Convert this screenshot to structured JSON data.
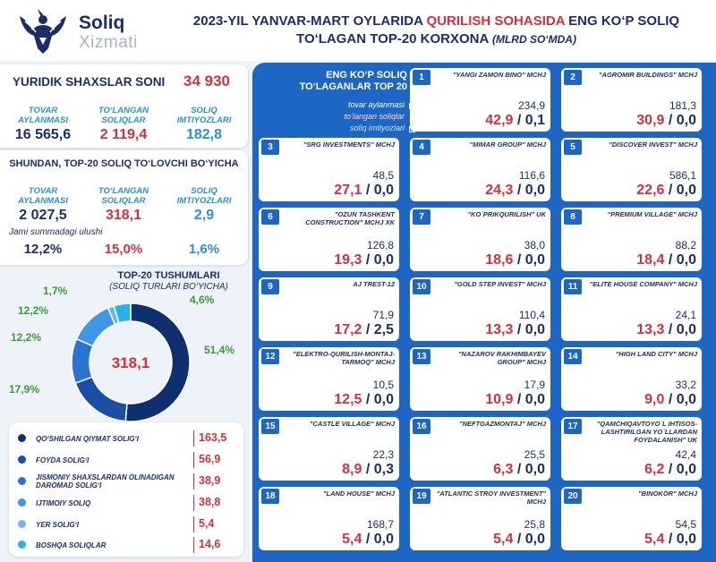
{
  "header": {
    "logo_title": "Soliq",
    "logo_sub": "Xizmati",
    "title_part1": "2023-YIL YANVAR-MART OYLARIDA ",
    "title_red": "QURILISH SOHASIDA",
    "title_part2": " ENG KO‘P SOLIQ",
    "title_line2": "TO‘LAGAN TOP-20 KORXONA",
    "title_unit": "(MLRD SO‘MDA)"
  },
  "entities": {
    "title": "YURIDIK SHAXSLAR SONI",
    "count": "34 930",
    "labels": [
      "TOVAR AYLANMASI",
      "TO‘LANGAN SOLIQLAR",
      "SOLIQ IMTIYOZLARI"
    ],
    "values": [
      "16 565,6",
      "2 119,4",
      "182,8"
    ]
  },
  "top20": {
    "title": "SHUNDAN, TOP-20 SOLIQ TO‘LOVCHI BO‘YICHA",
    "labels": [
      "TOVAR AYLANMASI",
      "TO‘LANGAN SOLIQLAR",
      "SOLIQ IMTIYOZLARI"
    ],
    "values": [
      "2 027,5",
      "318,1",
      "2,9"
    ],
    "share_label": "Jami summadagi ulushi",
    "shares": [
      "12,2%",
      "15,0%",
      "1,6%"
    ]
  },
  "donut": {
    "title": "TOP-20 TUSHUMLARI",
    "subtitle": "(SOLIQ TURLARI BO‘YICHA)",
    "center": "318,1",
    "pct_labels": [
      "51,4%",
      "17,9%",
      "12,2%",
      "12,2%",
      "1,7%",
      "4,6%"
    ]
  },
  "chart_data": {
    "type": "pie",
    "title": "TOP-20 TUSHUMLARI",
    "subtitle": "(SOLIQ TURLARI BO‘YICHA)",
    "total": 318.1,
    "categories": [
      "QO‘SHILGAN QIYMAT SOLIG‘I",
      "FOYDA SOLIG‘I",
      "JISMONIY SHAXSLARDAN OLINADIGAN DAROMAD SOLIG‘I",
      "IJTIMOIY SOLIQ",
      "YER SOLIG‘I",
      "BOSHQA SOLIQLAR"
    ],
    "values": [
      163.5,
      56.9,
      38.9,
      38.8,
      5.4,
      14.6
    ],
    "percents": [
      51.4,
      17.9,
      12.2,
      12.2,
      1.7,
      4.6
    ],
    "colors": [
      "#0f2f6e",
      "#1b4fa3",
      "#2a74cf",
      "#3d96e6",
      "#6cb9f2",
      "#2ab0ee"
    ]
  },
  "legend": [
    {
      "label": "QO‘SHILGAN QIYMAT SOLIG‘I",
      "value": "163,5"
    },
    {
      "label": "FOYDA SOLIG‘I",
      "value": "56,9"
    },
    {
      "label": "JISMONIY SHAXSLARDAN OLINADIGAN DAROMAD SOLIG‘I",
      "value": "38,9"
    },
    {
      "label": "IJTIMOIY SOLIQ",
      "value": "38,8"
    },
    {
      "label": "YER SOLIG‘I",
      "value": "5,4"
    },
    {
      "label": "BOSHQA SOLIQLAR",
      "value": "14,6"
    }
  ],
  "right": {
    "title": "ENG KO‘P SOLIQ TO‘LAGANLAR TOP 20",
    "legend": [
      "tovar aylanmasi",
      "to‘langan soliqlar",
      "soliq imtiyozlari"
    ],
    "legend_colors": [
      "#1b2e6b",
      "#d6303f",
      "#2a8fd9"
    ]
  },
  "companies": [
    {
      "num": "1",
      "name": "\"YANGI ZAMON BINO\" MCHJ",
      "turnover": "234,9",
      "tax": "42,9",
      "ben": "0,1"
    },
    {
      "num": "2",
      "name": "\"AGROMIR BUILDINGS\" MCHJ",
      "turnover": "181,3",
      "tax": "30,9",
      "ben": "0,0"
    },
    {
      "num": "3",
      "name": "\"SRG INVESTMENTS\" MCHJ",
      "turnover": "48,5",
      "tax": "27,1",
      "ben": "0,0"
    },
    {
      "num": "4",
      "name": "\"MIMAR GROUP\" MCHJ",
      "turnover": "116,6",
      "tax": "24,3",
      "ben": "0,0"
    },
    {
      "num": "5",
      "name": "\"DISCOVER INVEST\" MCHJ",
      "turnover": "586,1",
      "tax": "22,6",
      "ben": "0,0"
    },
    {
      "num": "6",
      "name": "\"OZUN TASHKENT CONSTRUCTION\" MCHJ XK",
      "turnover": "126,8",
      "tax": "19,3",
      "ben": "0,0"
    },
    {
      "num": "7",
      "name": "\"KO`PRIKQURILISH\" UK",
      "turnover": "38,0",
      "tax": "18,6",
      "ben": "0,0"
    },
    {
      "num": "8",
      "name": "\"PREMIUM VILLAGE\" MCHJ",
      "turnover": "88,2",
      "tax": "18,4",
      "ben": "0,0"
    },
    {
      "num": "9",
      "name": "AJ TREST-12",
      "turnover": "71,9",
      "tax": "17,2",
      "ben": "2,5"
    },
    {
      "num": "10",
      "name": "\"GOLD STEP INVEST\" MCHJ",
      "turnover": "110,4",
      "tax": "13,3",
      "ben": "0,0"
    },
    {
      "num": "11",
      "name": "\"ELITE HOUSE COMPANY\" MCHJ",
      "turnover": "24,1",
      "tax": "13,3",
      "ben": "0,0"
    },
    {
      "num": "12",
      "name": "\"ELEKTRO-QURILISH-MONTAJ-TARMOQ\" MCHJ",
      "turnover": "10,5",
      "tax": "12,5",
      "ben": "0,0"
    },
    {
      "num": "13",
      "name": "\"NAZAROV RAKHIMBAYEV GROUP\" MCHJ",
      "turnover": "17,9",
      "tax": "10,9",
      "ben": "0,0"
    },
    {
      "num": "14",
      "name": "\"HIGH LAND CITY\" MCHJ",
      "turnover": "33,2",
      "tax": "9,0",
      "ben": "0,0"
    },
    {
      "num": "15",
      "name": "\"CASTLE VILLAGE\" MCHJ",
      "turnover": "22,3",
      "tax": "8,9",
      "ben": "0,3"
    },
    {
      "num": "16",
      "name": "\"NEFTGAZMONTAJ\" MCHJ",
      "turnover": "25,5",
      "tax": "6,3",
      "ben": "0,0"
    },
    {
      "num": "17",
      "name": "\"QAMCHIQAVTOYO`L IHTISOS-LASHTIRILGAN YO`LLARDAN FOYDALANISH\" UK",
      "turnover": "42,4",
      "tax": "6,2",
      "ben": "0,0"
    },
    {
      "num": "18",
      "name": "\"LAND HOUSE\" MCHJ",
      "turnover": "168,7",
      "tax": "5,4",
      "ben": "0,0"
    },
    {
      "num": "19",
      "name": "\"ATLANTIC STROY INVESTMENT\" MCHJ",
      "turnover": "25,8",
      "tax": "5,4",
      "ben": "0,0"
    },
    {
      "num": "20",
      "name": "\"BINOKOR\" MCHJ",
      "turnover": "54,5",
      "tax": "5,4",
      "ben": "0,0"
    }
  ]
}
